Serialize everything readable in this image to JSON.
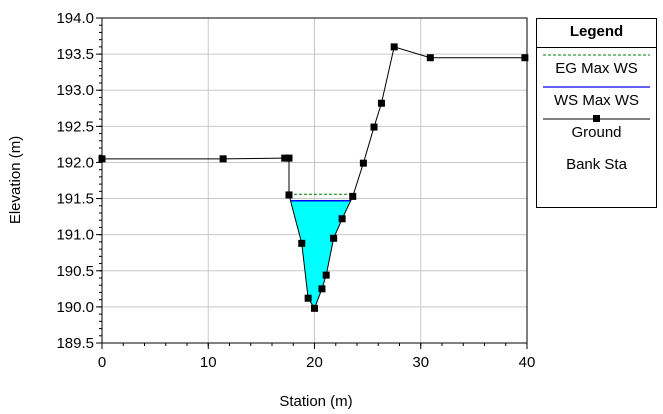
{
  "chart_data": {
    "type": "line",
    "title": "",
    "xlabel": "Station (m)",
    "ylabel": "Elevation (m)",
    "xlim": [
      0,
      40
    ],
    "ylim": [
      189.5,
      194.0
    ],
    "xticks": [
      "0",
      "10",
      "20",
      "30",
      "40"
    ],
    "yticks": [
      "189.5",
      "190.0",
      "190.5",
      "191.0",
      "191.5",
      "192.0",
      "192.5",
      "193.0",
      "193.5",
      "194.0"
    ],
    "grid": true,
    "legend_position": "right",
    "series": [
      {
        "name": "Ground",
        "color": "#000000",
        "marker": "square",
        "x": [
          0,
          11.4,
          17.2,
          17.6,
          17.6,
          18.8,
          19.4,
          20.0,
          20.7,
          21.1,
          21.8,
          22.6,
          23.6,
          24.6,
          25.6,
          26.3,
          27.5,
          30.9,
          39.8
        ],
        "y": [
          192.05,
          192.05,
          192.06,
          192.06,
          191.55,
          190.88,
          190.12,
          189.98,
          190.25,
          190.44,
          190.95,
          191.22,
          191.53,
          191.99,
          192.49,
          192.82,
          193.6,
          193.45,
          193.45
        ]
      },
      {
        "name": "WS Max WS",
        "color": "#0000ff",
        "type": "water-surface",
        "y": 191.47
      },
      {
        "name": "EG Max WS",
        "color": "#008000",
        "dash": "dashed",
        "y": 191.56
      },
      {
        "name": "Bank Sta",
        "color": "#000000",
        "x": [],
        "y": []
      }
    ],
    "water_fill_color": "#00ffff"
  },
  "legend": {
    "title": "Legend",
    "entries": [
      {
        "label": "EG Max WS",
        "style": "dashed",
        "color": "#008000"
      },
      {
        "label": "WS Max WS",
        "style": "solid",
        "color": "#0000ff"
      },
      {
        "label": "Ground",
        "style": "marker",
        "color": "#000000"
      },
      {
        "label": "Bank Sta",
        "style": "none",
        "color": "#000000"
      }
    ]
  }
}
